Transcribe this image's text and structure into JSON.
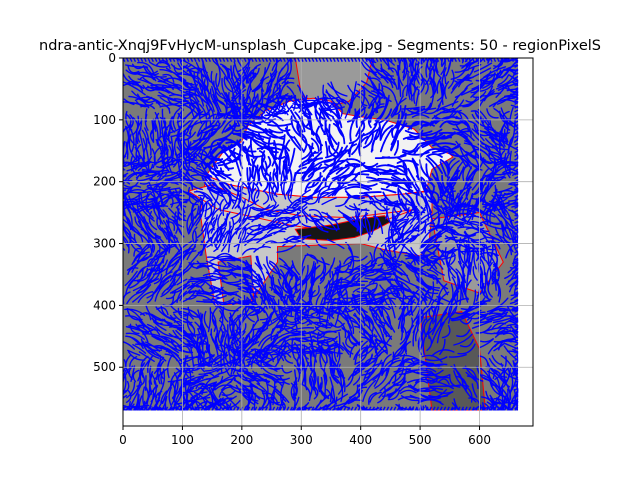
{
  "chart_data": {
    "type": "image",
    "title": "ndra-antic-Xnqj9FvHycM-unsplash_Cupcake.jpg - Segments: 50 - regionPixelS",
    "xlabel": "",
    "ylabel": "",
    "xlim": [
      0,
      690
    ],
    "ylim": [
      595,
      0
    ],
    "y_axis_inverted": true,
    "x_ticks": [
      0,
      100,
      200,
      300,
      400,
      500,
      600
    ],
    "x_tick_labels": [
      "0",
      "100",
      "200",
      "300",
      "400",
      "500",
      "600"
    ],
    "y_ticks": [
      0,
      100,
      200,
      300,
      400,
      500
    ],
    "y_tick_labels": [
      "0",
      "100",
      "200",
      "300",
      "400",
      "500"
    ],
    "image_extent": {
      "x": [
        0,
        665
      ],
      "y": [
        0,
        570
      ]
    },
    "grid": true,
    "colors": {
      "background_gray": "#7a7a7a",
      "dark_gray": "#585858",
      "mid_gray": "#9a9a9a",
      "light_region": "#c8c8c8",
      "frosting_white": "#f2f2f2",
      "dark_band": "#161616",
      "stroke_blue": "#0000ff",
      "boundary_red": "#ff0000",
      "grid": "#b0b0b0"
    },
    "regions": [
      {
        "name": "background",
        "color": "background_gray"
      },
      {
        "name": "bottom-right-dark",
        "color": "dark_gray"
      },
      {
        "name": "top-middle",
        "color": "mid_gray"
      },
      {
        "name": "cupcake-base",
        "color": "light_region"
      },
      {
        "name": "frosting",
        "color": "frosting_white"
      },
      {
        "name": "dark-band",
        "color": "dark_band"
      }
    ]
  }
}
